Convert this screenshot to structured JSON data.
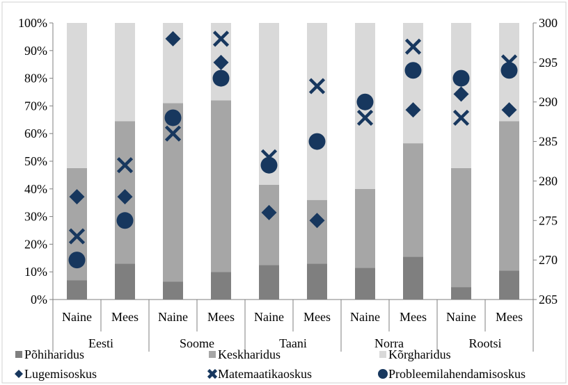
{
  "chart_data": {
    "type": "bar",
    "subtype": "stacked-bar-with-markers-on-secondary-axis",
    "title": "",
    "xlabel": "",
    "ylabel": "",
    "y_left": {
      "min": 0,
      "max": 100,
      "step": 10,
      "unit": "%",
      "tick_labels": [
        "0%",
        "10%",
        "20%",
        "30%",
        "40%",
        "50%",
        "60%",
        "70%",
        "80%",
        "90%",
        "100%"
      ]
    },
    "y_right": {
      "min": 265,
      "max": 300,
      "step": 5,
      "tick_labels": [
        "265",
        "270",
        "275",
        "280",
        "285",
        "290",
        "295",
        "300"
      ]
    },
    "grid": false,
    "groups": [
      {
        "name": "Eesti",
        "categories": [
          "Naine",
          "Mees"
        ]
      },
      {
        "name": "Soome",
        "categories": [
          "Naine",
          "Mees"
        ]
      },
      {
        "name": "Taani",
        "categories": [
          "Naine",
          "Mees"
        ]
      },
      {
        "name": "Norra",
        "categories": [
          "Naine",
          "Mees"
        ]
      },
      {
        "name": "Rootsi",
        "categories": [
          "Naine",
          "Mees"
        ]
      }
    ],
    "bar_series": [
      {
        "name": "Põhiharidus",
        "color": "#7f7f7f",
        "values": [
          7,
          13,
          6.5,
          10,
          12.5,
          13,
          11.5,
          15.5,
          4.5,
          10.5
        ]
      },
      {
        "name": "Keskharidus",
        "color": "#a6a6a6",
        "values": [
          40.5,
          51.5,
          64.5,
          62,
          29,
          23,
          28.5,
          41,
          43,
          54
        ]
      },
      {
        "name": "Kõrgharidus",
        "color": "#d9d9d9",
        "values": [
          52.5,
          35.5,
          29,
          28,
          58.5,
          64,
          60,
          43.5,
          52.5,
          35.5
        ]
      }
    ],
    "marker_series": [
      {
        "name": "Lugemisoskus",
        "marker": "diamond",
        "color": "#17375e",
        "axis": "right",
        "values": [
          278,
          278,
          298,
          295,
          276,
          275,
          290,
          289,
          291,
          289
        ]
      },
      {
        "name": "Matemaatikaoskus",
        "marker": "x",
        "color": "#17375e",
        "axis": "right",
        "values": [
          273,
          282,
          286,
          298,
          283,
          292,
          288,
          297,
          288,
          295
        ]
      },
      {
        "name": "Probleemilahendamisoskus",
        "marker": "circle",
        "color": "#17375e",
        "axis": "right",
        "values": [
          270,
          275,
          288,
          293,
          282,
          285,
          290,
          294,
          293,
          294
        ]
      }
    ],
    "legend": {
      "position": "bottom",
      "rows": [
        [
          "Põhiharidus",
          "Keskharidus",
          "Kõrgharidus"
        ],
        [
          "Lugemisoskus",
          "Matemaatikaoskus",
          "Probleemilahendamisoskus"
        ]
      ]
    }
  }
}
